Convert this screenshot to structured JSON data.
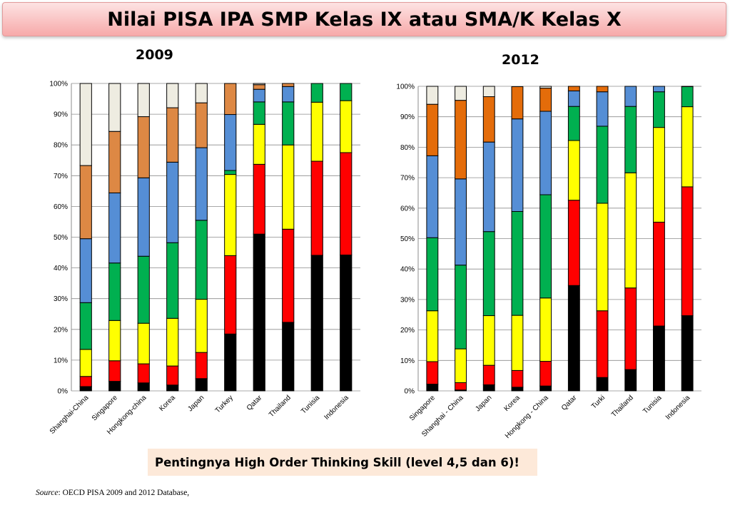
{
  "header": {
    "title": "Nilai PISA IPA SMP Kelas IX atau SMA/K Kelas X"
  },
  "note": {
    "text": "Pentingnya High Order Thinking Skill (level 4,5 dan 6)!"
  },
  "source": {
    "label": "Source",
    "text": ": OECD PISA 2009  and 2012 Database,"
  },
  "colors": [
    "#000000",
    "#ff0000",
    "#ffff00",
    "#00b050",
    "#558ed5",
    "#dd8844",
    "#eeece1"
  ],
  "chart_data": [
    {
      "type": "bar",
      "stacked": true,
      "title": "2009",
      "ylim": [
        0,
        100
      ],
      "yticks": [
        "0%",
        "10%",
        "20%",
        "30%",
        "40%",
        "50%",
        "60%",
        "70%",
        "80%",
        "90%",
        "100%"
      ],
      "grid": true,
      "categories": [
        "Shanghai-China",
        "Singapore",
        "Hongkong-china",
        "Korea",
        "Japan",
        "Turkey",
        "Qatar",
        "Thailand",
        "Tunisia",
        "Indonesia"
      ],
      "colors": [
        "#000000",
        "#ff0000",
        "#ffff00",
        "#00b050",
        "#558ed5",
        "#dd8844",
        "#eeece1"
      ],
      "series": [
        {
          "values": [
            1.4,
            3.1,
            2.6,
            1.9,
            4.0,
            18.5,
            51.0,
            22.3,
            44.1,
            44.2
          ]
        },
        {
          "values": [
            3.3,
            6.7,
            6.2,
            6.2,
            8.5,
            25.5,
            22.7,
            30.3,
            30.6,
            33.3
          ]
        },
        {
          "values": [
            8.8,
            13.1,
            13.2,
            15.5,
            17.3,
            26.4,
            13.0,
            27.4,
            19.2,
            16.9
          ]
        },
        {
          "values": [
            15.2,
            18.7,
            21.8,
            24.6,
            25.7,
            1.3,
            7.3,
            14.0,
            6.1,
            5.6
          ]
        },
        {
          "values": [
            20.8,
            22.8,
            25.5,
            26.2,
            23.6,
            18.2,
            4.1,
            5.0,
            0,
            0
          ]
        },
        {
          "values": [
            23.8,
            20.0,
            19.9,
            17.7,
            14.6,
            10.1,
            1.5,
            1.0,
            0,
            0
          ]
        },
        {
          "values": [
            26.7,
            15.6,
            10.8,
            7.9,
            6.3,
            0,
            0.4,
            0,
            0,
            0
          ]
        }
      ]
    },
    {
      "type": "bar",
      "stacked": true,
      "title": "2012",
      "ylim": [
        0,
        100
      ],
      "yticks": [
        "0%",
        "10%",
        "20%",
        "30%",
        "40%",
        "50%",
        "60%",
        "70%",
        "80%",
        "90%",
        "100%"
      ],
      "grid": true,
      "categories": [
        "Singapore",
        "Shanghai - China",
        "Japan",
        "Korea",
        "Hongkong - China",
        "Qatar",
        "Turki",
        "Thailand",
        "Tunisia",
        "Indonesia"
      ],
      "colors": [
        "#000000",
        "#ff0000",
        "#ffff00",
        "#00b050",
        "#558ed5",
        "#e46c0a",
        "#eeece1"
      ],
      "series": [
        {
          "values": [
            2.2,
            0.3,
            2.0,
            1.2,
            1.6,
            34.6,
            4.4,
            7.0,
            21.3,
            24.7
          ]
        },
        {
          "values": [
            7.4,
            2.4,
            6.4,
            5.5,
            8.1,
            28.0,
            21.9,
            26.8,
            34.1,
            42.3
          ]
        },
        {
          "values": [
            16.7,
            11.1,
            16.3,
            18.1,
            20.8,
            19.6,
            35.3,
            37.8,
            31.1,
            26.3
          ]
        },
        {
          "values": [
            24.0,
            27.5,
            27.6,
            34.1,
            33.9,
            11.2,
            25.3,
            21.8,
            11.7,
            6.6
          ]
        },
        {
          "values": [
            26.9,
            28.3,
            29.4,
            30.4,
            27.4,
            5.1,
            11.3,
            6.6,
            1.8,
            0.1
          ]
        },
        {
          "values": [
            16.9,
            25.8,
            14.9,
            10.6,
            7.6,
            1.5,
            1.8,
            0,
            0,
            0
          ]
        },
        {
          "values": [
            5.9,
            4.6,
            3.4,
            0,
            0.6,
            0,
            0,
            0,
            0,
            0
          ]
        }
      ]
    }
  ]
}
